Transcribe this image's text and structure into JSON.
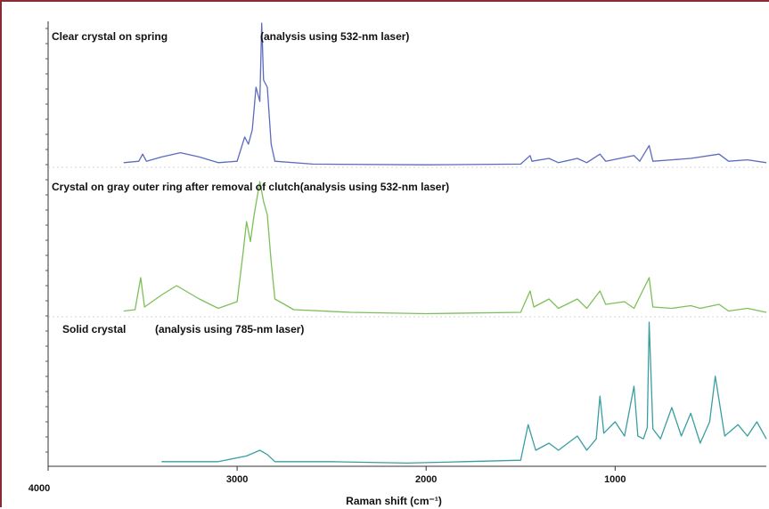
{
  "chart_data": {
    "type": "line",
    "xlabel": "Raman shift (cm⁻¹)",
    "xlim": [
      4000,
      200
    ],
    "xticks": [
      4000,
      3000,
      2000,
      1000
    ],
    "series": [
      {
        "name": "Clear crystal on spring",
        "note": "(analysis using 532-nm laser)",
        "color": "#5a6bc0",
        "points": [
          [
            3600,
            0.02
          ],
          [
            3520,
            0.03
          ],
          [
            3500,
            0.08
          ],
          [
            3480,
            0.03
          ],
          [
            3400,
            0.06
          ],
          [
            3300,
            0.09
          ],
          [
            3200,
            0.06
          ],
          [
            3100,
            0.02
          ],
          [
            3000,
            0.03
          ],
          [
            2960,
            0.2
          ],
          [
            2940,
            0.15
          ],
          [
            2920,
            0.25
          ],
          [
            2900,
            0.55
          ],
          [
            2880,
            0.45
          ],
          [
            2870,
            1.0
          ],
          [
            2860,
            0.6
          ],
          [
            2840,
            0.55
          ],
          [
            2820,
            0.15
          ],
          [
            2800,
            0.03
          ],
          [
            2600,
            0.01
          ],
          [
            2000,
            0.005
          ],
          [
            1500,
            0.01
          ],
          [
            1450,
            0.07
          ],
          [
            1440,
            0.03
          ],
          [
            1350,
            0.05
          ],
          [
            1300,
            0.02
          ],
          [
            1200,
            0.05
          ],
          [
            1150,
            0.02
          ],
          [
            1080,
            0.08
          ],
          [
            1050,
            0.03
          ],
          [
            900,
            0.07
          ],
          [
            870,
            0.03
          ],
          [
            820,
            0.14
          ],
          [
            800,
            0.03
          ],
          [
            700,
            0.04
          ],
          [
            600,
            0.05
          ],
          [
            450,
            0.08
          ],
          [
            400,
            0.03
          ],
          [
            300,
            0.04
          ],
          [
            200,
            0.02
          ]
        ]
      },
      {
        "name": "Crystal on gray outer ring after removal of clutch",
        "note": "(analysis using 532-nm laser)",
        "color": "#7cc05a",
        "points": [
          [
            3600,
            0.03
          ],
          [
            3540,
            0.04
          ],
          [
            3510,
            0.28
          ],
          [
            3490,
            0.06
          ],
          [
            3400,
            0.15
          ],
          [
            3320,
            0.22
          ],
          [
            3200,
            0.12
          ],
          [
            3100,
            0.05
          ],
          [
            3000,
            0.1
          ],
          [
            2970,
            0.45
          ],
          [
            2950,
            0.7
          ],
          [
            2930,
            0.55
          ],
          [
            2910,
            0.75
          ],
          [
            2880,
            1.0
          ],
          [
            2860,
            0.85
          ],
          [
            2840,
            0.75
          ],
          [
            2820,
            0.4
          ],
          [
            2800,
            0.12
          ],
          [
            2700,
            0.04
          ],
          [
            2400,
            0.02
          ],
          [
            2000,
            0.01
          ],
          [
            1500,
            0.02
          ],
          [
            1450,
            0.18
          ],
          [
            1430,
            0.06
          ],
          [
            1350,
            0.12
          ],
          [
            1300,
            0.05
          ],
          [
            1200,
            0.12
          ],
          [
            1150,
            0.05
          ],
          [
            1080,
            0.18
          ],
          [
            1050,
            0.08
          ],
          [
            950,
            0.1
          ],
          [
            900,
            0.05
          ],
          [
            820,
            0.28
          ],
          [
            800,
            0.06
          ],
          [
            700,
            0.05
          ],
          [
            600,
            0.07
          ],
          [
            550,
            0.05
          ],
          [
            450,
            0.08
          ],
          [
            400,
            0.03
          ],
          [
            300,
            0.05
          ],
          [
            200,
            0.02
          ]
        ]
      },
      {
        "name": "Solid crystal",
        "note": "(analysis using 785-nm laser)",
        "color": "#3a9ea0",
        "points": [
          [
            3400,
            0.02
          ],
          [
            3100,
            0.02
          ],
          [
            2950,
            0.06
          ],
          [
            2880,
            0.1
          ],
          [
            2840,
            0.07
          ],
          [
            2800,
            0.02
          ],
          [
            2500,
            0.02
          ],
          [
            2100,
            0.01
          ],
          [
            1800,
            0.02
          ],
          [
            1500,
            0.03
          ],
          [
            1460,
            0.28
          ],
          [
            1420,
            0.1
          ],
          [
            1350,
            0.15
          ],
          [
            1300,
            0.1
          ],
          [
            1200,
            0.2
          ],
          [
            1150,
            0.1
          ],
          [
            1100,
            0.18
          ],
          [
            1080,
            0.48
          ],
          [
            1060,
            0.22
          ],
          [
            1000,
            0.3
          ],
          [
            950,
            0.2
          ],
          [
            900,
            0.55
          ],
          [
            880,
            0.2
          ],
          [
            850,
            0.18
          ],
          [
            830,
            0.26
          ],
          [
            820,
            1.0
          ],
          [
            800,
            0.25
          ],
          [
            760,
            0.18
          ],
          [
            700,
            0.4
          ],
          [
            650,
            0.2
          ],
          [
            600,
            0.36
          ],
          [
            550,
            0.15
          ],
          [
            500,
            0.3
          ],
          [
            470,
            0.62
          ],
          [
            450,
            0.45
          ],
          [
            420,
            0.2
          ],
          [
            350,
            0.28
          ],
          [
            300,
            0.2
          ],
          [
            250,
            0.3
          ],
          [
            200,
            0.18
          ]
        ]
      }
    ]
  }
}
